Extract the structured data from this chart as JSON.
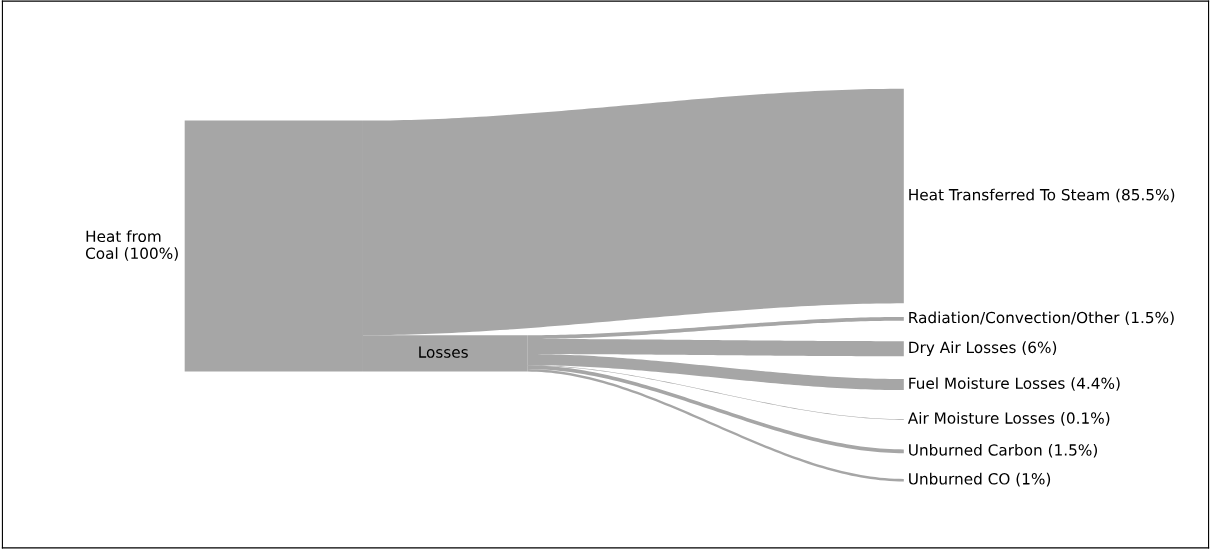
{
  "chart_data": {
    "type": "other",
    "categories": [
      "Heat from\nCoal",
      "Losses",
      "Heat Transferred To Steam",
      "Radiation/Convection/Other",
      "Dry Air Losses",
      "Fuel Moisture Losses",
      "Air Moisture Losses",
      "Unburned Carbon",
      "Unburned CO"
    ],
    "values": [
      100,
      null,
      85.5,
      1.5,
      6,
      4.4,
      0.1,
      1.5,
      1
    ],
    "value_labels": [
      "(100%)",
      null,
      "(85.5%)",
      "(1.5%)",
      "(6%)",
      "(4.4%)",
      "(0.1%)",
      "(1.5%)",
      "(1%)"
    ],
    "color": "#a6a6a6"
  }
}
